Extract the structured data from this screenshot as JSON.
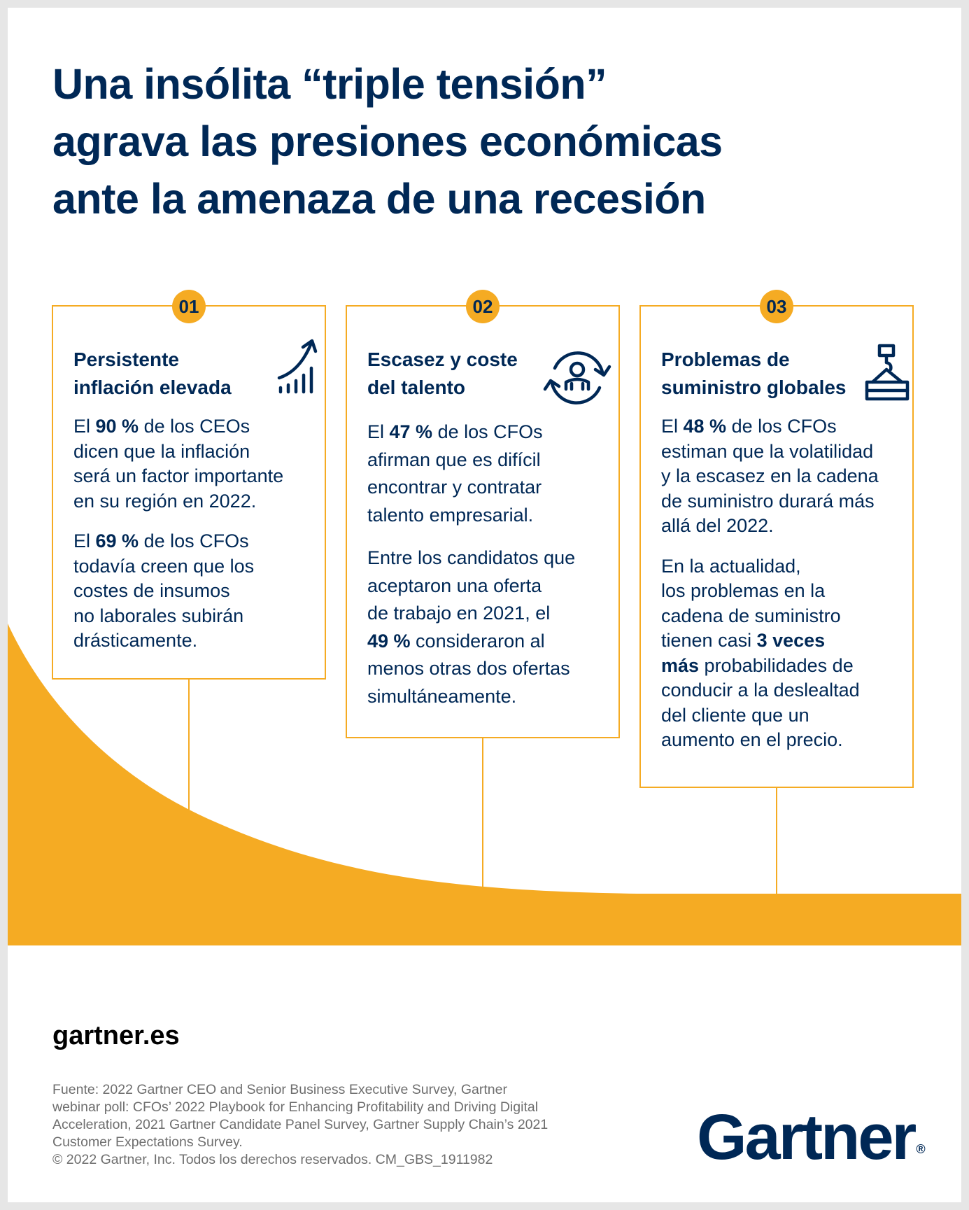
{
  "title": {
    "lines": [
      "Una insólita “triple tensión”",
      "agrava las presiones económicas",
      "ante la amenaza de una recesión"
    ]
  },
  "colors": {
    "navy": "#002856",
    "accent": "#f5ab23",
    "muted_text": "#6e6e6e",
    "background": "#ffffff"
  },
  "cards": [
    {
      "number": "01",
      "title_lines": [
        "Persistente",
        "inflación  elevada"
      ],
      "icon": "rising-bar-chart-icon",
      "p1": {
        "before": "El ",
        "highlight": "90 %",
        "rest_first": " de los CEOs",
        "lines": [
          "dicen que la inflación",
          "será un factor importante",
          "en su región en 2022."
        ]
      },
      "p2": {
        "before": "El ",
        "highlight": "69 %",
        "rest_first": " de los CFOs",
        "lines": [
          "todavía creen que los",
          "costes de insumos",
          "no laborales subirán",
          "drásticamente."
        ]
      }
    },
    {
      "number": "02",
      "title_lines": [
        "Escasez y coste",
        "del talento"
      ],
      "icon": "person-cycle-icon",
      "p1": {
        "before": "El ",
        "highlight": "47 %",
        "rest_first": " de los CFOs",
        "lines": [
          "afirman que es difícil",
          "encontrar y contratar",
          "talento empresarial."
        ]
      },
      "p2": {
        "lines_before": [
          "Entre los candidatos que",
          "aceptaron una oferta",
          "de trabajo en 2021, el"
        ],
        "highlight": "49 %",
        "rest": " consideraron al",
        "lines_after": [
          "menos otras dos ofertas",
          "simultáneamente."
        ]
      }
    },
    {
      "number": "03",
      "title_lines": [
        "Problemas de",
        "suministro globales"
      ],
      "icon": "crane-container-icon",
      "p1": {
        "before": "El ",
        "highlight": "48 %",
        "rest_first": " de los CFOs",
        "lines": [
          "estiman que la volatilidad",
          "y la escasez en la cadena",
          "de suministro durará más",
          "allá del 2022."
        ]
      },
      "p2": {
        "lines_before": [
          "En la actualidad,",
          "los problemas en la",
          "cadena de suministro"
        ],
        "pre": "tienen casi ",
        "highlight_a": "3 veces",
        "highlight_b": "más",
        "post": " probabilidades de",
        "lines_after": [
          "conducir a la deslealtad",
          "del cliente que un",
          "aumento en el precio."
        ]
      }
    }
  ],
  "footer": {
    "site": "gartner.es",
    "source_lines": [
      "Fuente: 2022 Gartner CEO and Senior Business Executive Survey, Gartner",
      "webinar poll: CFOs’ 2022 Playbook for Enhancing Profitability and Driving Digital",
      "Acceleration, 2021 Gartner Candidate Panel Survey, Gartner Supply Chain’s 2021",
      "Customer Expectations Survey.",
      "© 2022 Gartner, Inc. Todos los derechos reservados. CM_GBS_1911982"
    ],
    "logo": "Gartner",
    "logo_mark": "®"
  }
}
